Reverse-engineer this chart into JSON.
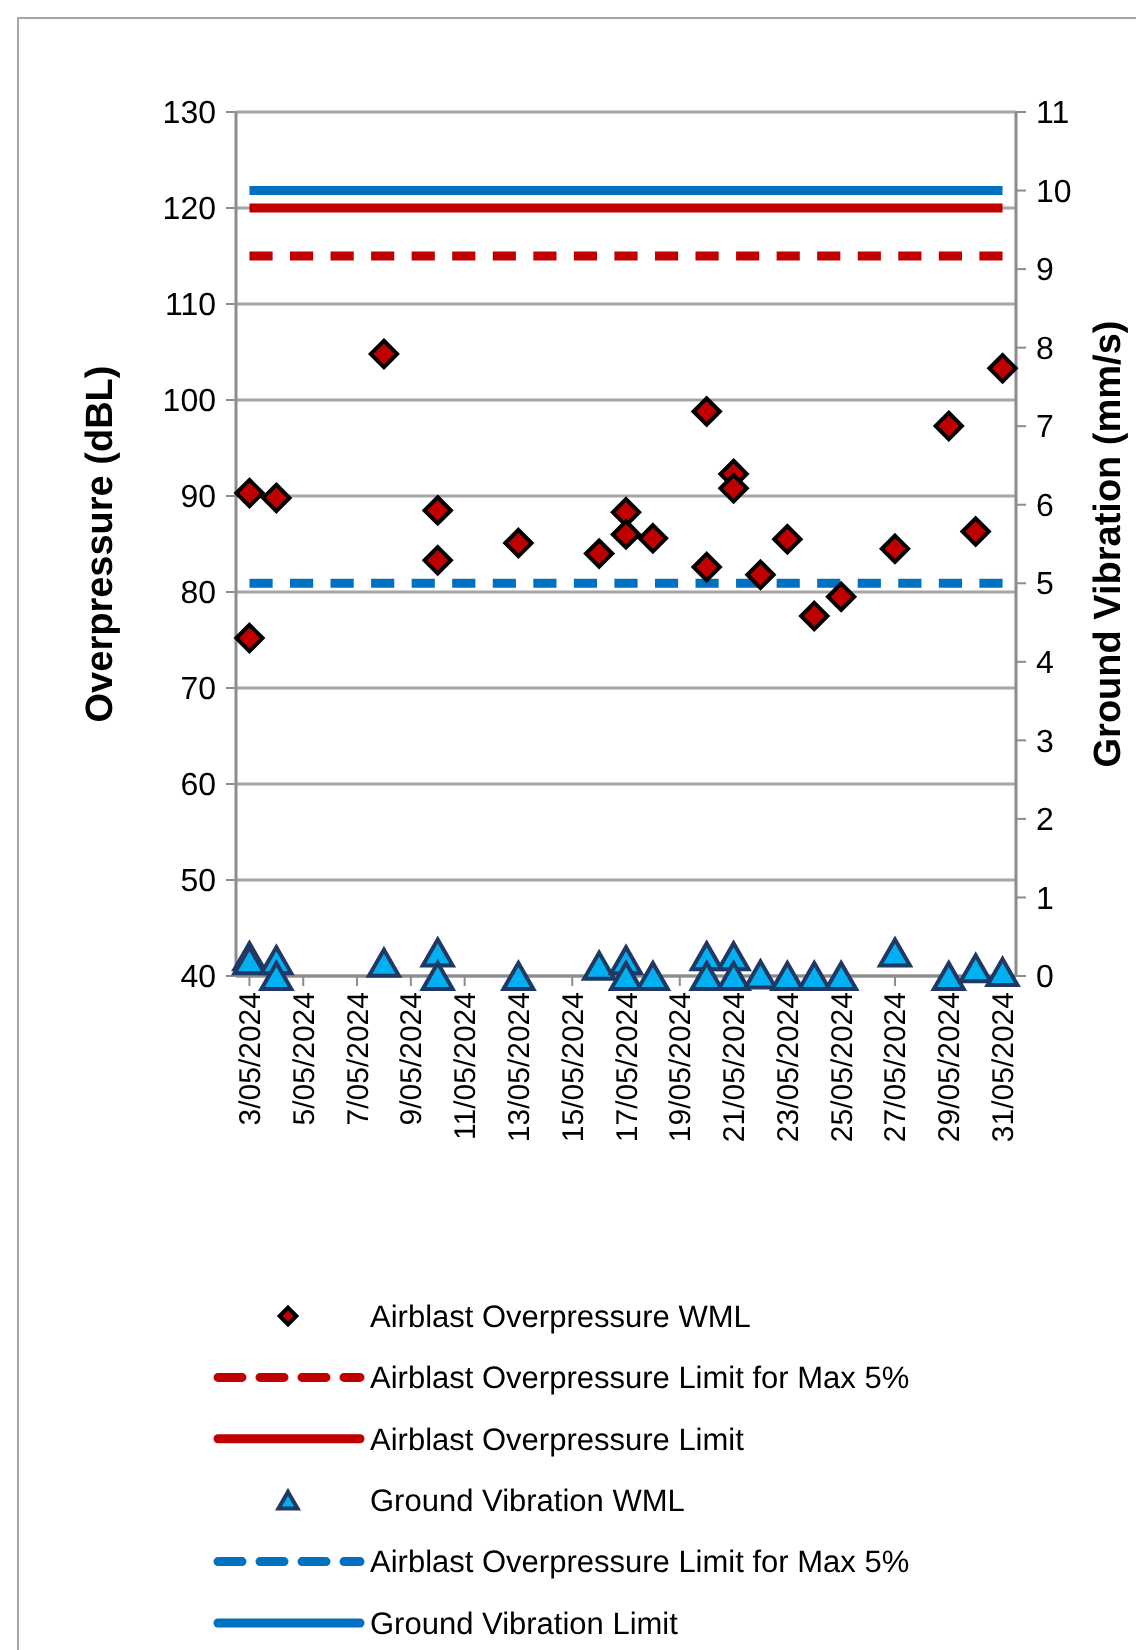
{
  "chart_data": {
    "type": "scatter",
    "xlabel": null,
    "ylabel": "Overpressure (dBL)",
    "y2label": "Ground Vibration (mm/s)",
    "xlim": [
      "2024-05-02T12:00",
      "2024-05-31T12:00"
    ],
    "xticks": [
      {
        "value": "2024-05-03",
        "label": "3/05/2024"
      },
      {
        "value": "2024-05-05",
        "label": "5/05/2024"
      },
      {
        "value": "2024-05-07",
        "label": "7/05/2024"
      },
      {
        "value": "2024-05-09",
        "label": "9/05/2024"
      },
      {
        "value": "2024-05-11",
        "label": "11/05/2024"
      },
      {
        "value": "2024-05-13",
        "label": "13/05/2024"
      },
      {
        "value": "2024-05-15",
        "label": "15/05/2024"
      },
      {
        "value": "2024-05-17",
        "label": "17/05/2024"
      },
      {
        "value": "2024-05-19",
        "label": "19/05/2024"
      },
      {
        "value": "2024-05-21",
        "label": "21/05/2024"
      },
      {
        "value": "2024-05-23",
        "label": "23/05/2024"
      },
      {
        "value": "2024-05-25",
        "label": "25/05/2024"
      },
      {
        "value": "2024-05-27",
        "label": "27/05/2024"
      },
      {
        "value": "2024-05-29",
        "label": "29/05/2024"
      },
      {
        "value": "2024-05-31",
        "label": "31/05/2024"
      }
    ],
    "ylim": [
      40,
      130
    ],
    "yticks": [
      40,
      50,
      60,
      70,
      80,
      90,
      100,
      110,
      120,
      130
    ],
    "y2lim": [
      0,
      11
    ],
    "y2ticks": [
      0,
      1,
      2,
      3,
      4,
      5,
      6,
      7,
      8,
      9,
      10,
      11
    ],
    "grid": "y",
    "legend": "bottom",
    "series": [
      {
        "name": "Airblast Overpressure WML",
        "type": "scatter",
        "marker": "diamond",
        "color": "#c00000",
        "x": [
          "2024-05-03",
          "2024-05-03",
          "2024-05-04",
          "2024-05-08",
          "2024-05-10",
          "2024-05-10",
          "2024-05-13",
          "2024-05-16",
          "2024-05-17",
          "2024-05-17",
          "2024-05-18",
          "2024-05-20",
          "2024-05-20",
          "2024-05-21",
          "2024-05-21",
          "2024-05-22",
          "2024-05-23",
          "2024-05-24",
          "2024-05-25",
          "2024-05-27",
          "2024-05-29",
          "2024-05-30",
          "2024-05-31"
        ],
        "values": [
          90.3,
          75.2,
          89.8,
          104.8,
          88.5,
          83.3,
          85.1,
          84.0,
          88.3,
          86.0,
          85.6,
          98.8,
          82.6,
          92.3,
          90.8,
          81.8,
          85.5,
          77.5,
          79.5,
          84.5,
          97.3,
          86.3,
          103.3
        ]
      },
      {
        "name": "Airblast Overpressure Limit for Max 5%",
        "type": "line",
        "line_style": "dashed",
        "color": "#c00000",
        "x": [
          "2024-05-03",
          "2024-05-31"
        ],
        "values": [
          115,
          115
        ]
      },
      {
        "name": "Airblast Overpressure Limit",
        "type": "line",
        "line_style": "solid",
        "color": "#c00000",
        "x": [
          "2024-05-03",
          "2024-05-31"
        ],
        "values": [
          120,
          120
        ]
      },
      {
        "name": "Ground Vibration WML",
        "type": "scatter",
        "marker": "triangle",
        "axis": "y2",
        "color": "#00b0f0",
        "x": [
          "2024-05-03",
          "2024-05-03",
          "2024-05-04",
          "2024-05-04",
          "2024-05-08",
          "2024-05-10",
          "2024-05-10",
          "2024-05-13",
          "2024-05-16",
          "2024-05-17",
          "2024-05-17",
          "2024-05-18",
          "2024-05-20",
          "2024-05-20",
          "2024-05-21",
          "2024-05-21",
          "2024-05-22",
          "2024-05-23",
          "2024-05-24",
          "2024-05-25",
          "2024-05-27",
          "2024-05-29",
          "2024-05-30",
          "2024-05-31"
        ],
        "values": [
          0.25,
          0.2,
          0.2,
          0,
          0.17,
          0.3,
          0,
          0,
          0.13,
          0.2,
          0,
          0,
          0.25,
          0,
          0.25,
          0,
          0.02,
          0,
          0,
          0,
          0.3,
          0,
          0.1,
          0.05
        ]
      },
      {
        "name": "Airblast Overpressure Limit for Max 5%",
        "type": "line",
        "line_style": "dashed",
        "axis": "y2",
        "color": "#0070c0",
        "x": [
          "2024-05-03",
          "2024-05-31"
        ],
        "values": [
          5,
          5
        ]
      },
      {
        "name": "Ground Vibration Limit",
        "type": "line",
        "line_style": "solid",
        "axis": "y2",
        "color": "#0070c0",
        "x": [
          "2024-05-03",
          "2024-05-31"
        ],
        "values": [
          10,
          10
        ]
      }
    ]
  }
}
